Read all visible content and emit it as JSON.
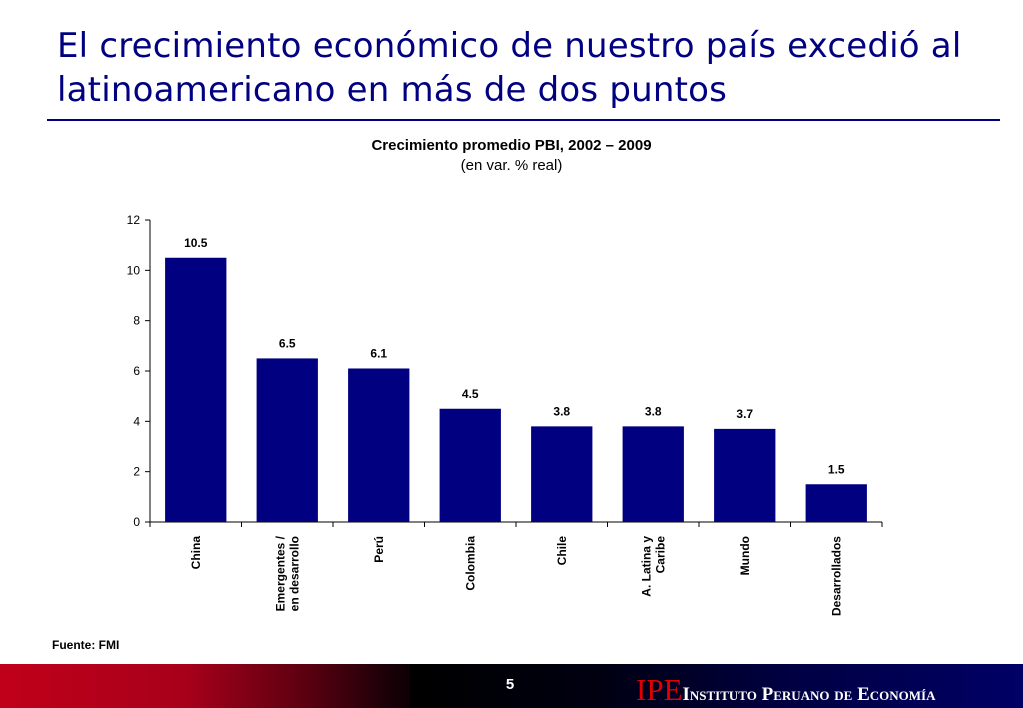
{
  "slide": {
    "title": "El crecimiento económico de nuestro país excedió al latinoamericano en más de dos puntos",
    "page_number": "5",
    "source": "Fuente: FMI",
    "logo_mark": "IPE",
    "logo_text": "Instituto Peruano de Economía"
  },
  "chart_data": {
    "type": "bar",
    "title": "Crecimiento promedio PBI, 2002 – 2009",
    "subtitle": "(en var. % real)",
    "categories": [
      "China",
      "Emergentes / en desarrollo",
      "Perú",
      "Colombia",
      "Chile",
      "A. Latina y Caribe",
      "Mundo",
      "Desarrollados"
    ],
    "category_lines": [
      [
        "China"
      ],
      [
        "Emergentes /",
        "en desarrollo"
      ],
      [
        "Perú"
      ],
      [
        "Colombia"
      ],
      [
        "Chile"
      ],
      [
        "A. Latina y",
        "Caribe"
      ],
      [
        "Mundo"
      ],
      [
        "Desarrollados"
      ]
    ],
    "values": [
      10.5,
      6.5,
      6.1,
      4.5,
      3.8,
      3.8,
      3.7,
      1.5
    ],
    "value_labels": [
      "10.5",
      "6.5",
      "6.1",
      "4.5",
      "3.8",
      "3.8",
      "3.7",
      "1.5"
    ],
    "ylim": [
      0,
      12
    ],
    "yticks": [
      0,
      2,
      4,
      6,
      8,
      10,
      12
    ],
    "xlabel": "",
    "ylabel": "",
    "grid": false,
    "legend": "none",
    "bar_color": "#000080"
  }
}
